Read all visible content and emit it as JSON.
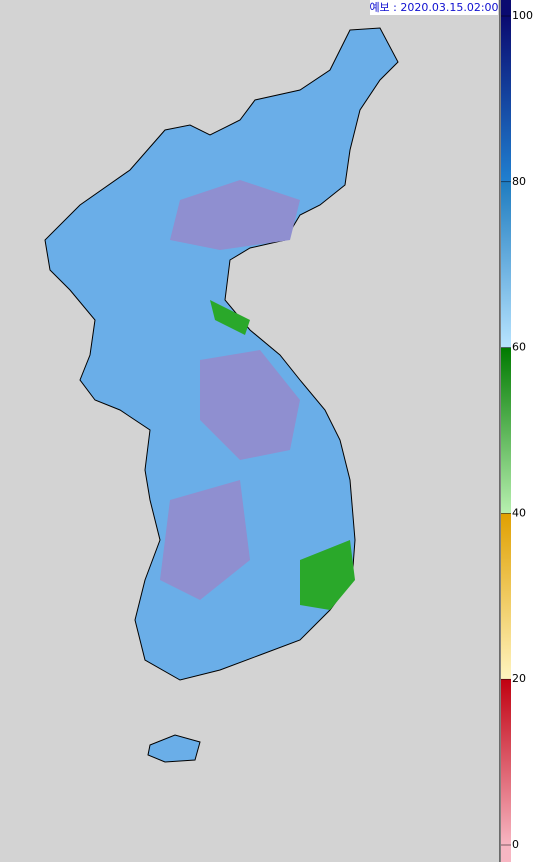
{
  "header": {
    "title": "예보 : 2020.03.15.02:00"
  },
  "colorbar": {
    "lim": [
      0,
      100
    ],
    "ticks": [
      0,
      20,
      40,
      60,
      80,
      100
    ],
    "colors": [
      [
        "#f7b6c2",
        "#c00010"
      ],
      [
        "#fff4c0",
        "#e0a000"
      ],
      [
        "#b8f0b0",
        "#007a00"
      ],
      [
        "#b8e4ff",
        "#1e7cc0"
      ],
      [
        "#2080d0",
        "#0a0a70"
      ]
    ]
  }
}
